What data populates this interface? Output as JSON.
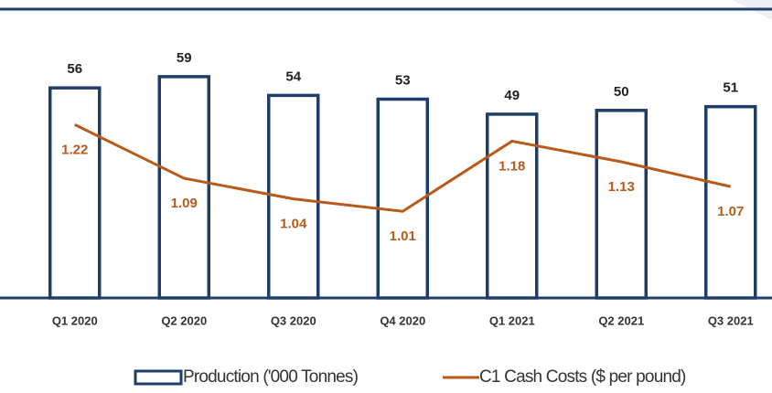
{
  "chart_data": {
    "type": "bar_line",
    "categories": [
      "Q1 2020",
      "Q2 2020",
      "Q3 2020",
      "Q4 2020",
      "Q1 2021",
      "Q2 2021",
      "Q3 2021"
    ],
    "series": [
      {
        "name": "Production ('000 Tonnes)",
        "color": "#1f3f6a",
        "type": "bar",
        "values": [
          56,
          59,
          54,
          53,
          49,
          50,
          51
        ]
      },
      {
        "name": "C1 Cash Costs ($ per pound)",
        "color": "#b85a1a",
        "type": "line",
        "axis": "y2",
        "values": [
          1.22,
          1.09,
          1.04,
          1.01,
          1.18,
          1.13,
          1.07
        ]
      }
    ],
    "ylim": [
      0,
      77
    ],
    "y2lim": [
      0.8,
      1.5
    ],
    "legend": "bottom"
  }
}
